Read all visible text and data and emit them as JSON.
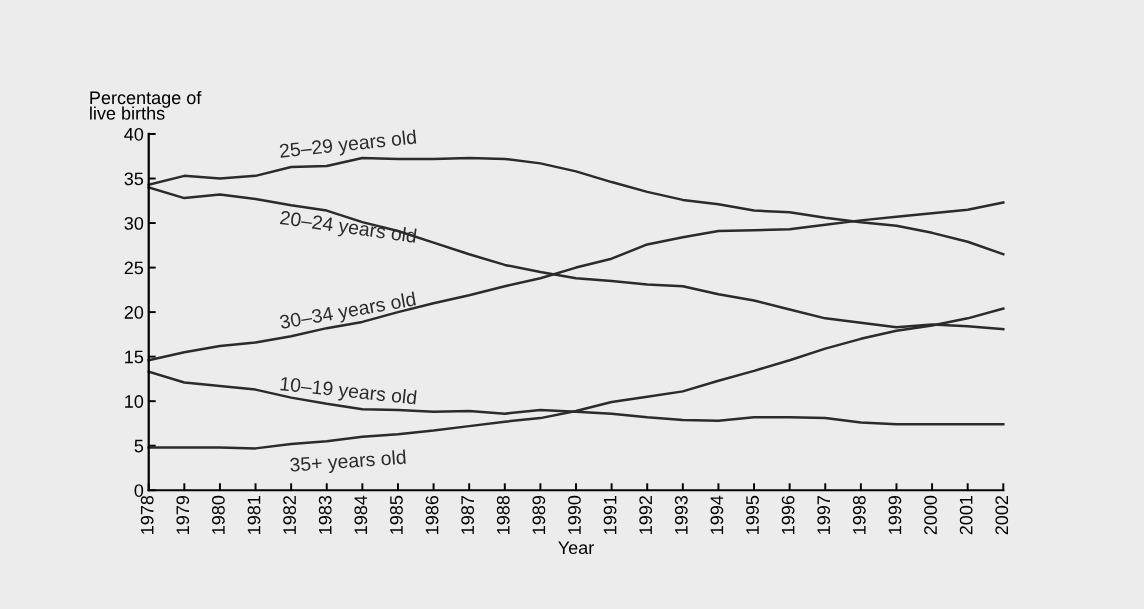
{
  "chart_data": {
    "type": "line",
    "ylabel": "Percentage of\nlive births",
    "xlabel": "Year",
    "x": [
      1978,
      1979,
      1980,
      1981,
      1982,
      1983,
      1984,
      1985,
      1986,
      1987,
      1988,
      1989,
      1990,
      1991,
      1992,
      1993,
      1994,
      1995,
      1996,
      1997,
      1998,
      1999,
      2000,
      2001,
      2002
    ],
    "xlim": [
      1978,
      2002
    ],
    "xticks": [
      1978,
      1979,
      1980,
      1981,
      1982,
      1983,
      1984,
      1985,
      1986,
      1987,
      1988,
      1989,
      1990,
      1991,
      1992,
      1993,
      1994,
      1995,
      1996,
      1997,
      1998,
      1999,
      2000,
      2001,
      2002
    ],
    "ylim": [
      0,
      40
    ],
    "yticks": [
      0,
      5,
      10,
      15,
      20,
      25,
      30,
      35,
      40
    ],
    "grid": false,
    "legend": false,
    "marker": "none",
    "line_style": "solid",
    "series": [
      {
        "name": "25–29 years old",
        "color": "#2b2b2b",
        "values": [
          34.3,
          35.3,
          35.0,
          35.3,
          36.3,
          36.4,
          37.3,
          37.2,
          37.2,
          37.3,
          37.2,
          36.7,
          35.8,
          34.6,
          33.5,
          32.6,
          32.1,
          31.4,
          31.2,
          30.6,
          30.1,
          29.7,
          28.9,
          27.9,
          26.5
        ]
      },
      {
        "name": "20–24 years old",
        "color": "#2b2b2b",
        "values": [
          34.0,
          32.8,
          33.2,
          32.7,
          32.0,
          31.4,
          30.1,
          29.1,
          27.8,
          26.5,
          25.3,
          24.5,
          23.8,
          23.5,
          23.1,
          22.9,
          22.0,
          21.3,
          20.3,
          19.3,
          18.8,
          18.3,
          18.6,
          18.4,
          18.1
        ]
      },
      {
        "name": "30–34 years old",
        "color": "#2b2b2b",
        "values": [
          14.6,
          15.5,
          16.2,
          16.6,
          17.3,
          18.2,
          18.9,
          20.0,
          21.0,
          21.9,
          22.9,
          23.8,
          25.0,
          26.0,
          27.6,
          28.4,
          29.1,
          29.2,
          29.3,
          29.8,
          30.3,
          30.7,
          31.1,
          31.5,
          32.3
        ]
      },
      {
        "name": "10–19 years old",
        "color": "#2b2b2b",
        "values": [
          13.3,
          12.1,
          11.7,
          11.3,
          10.4,
          9.7,
          9.1,
          9.0,
          8.8,
          8.9,
          8.6,
          9.0,
          8.8,
          8.6,
          8.2,
          7.9,
          7.8,
          8.2,
          8.2,
          8.1,
          7.6,
          7.4,
          7.4,
          7.4,
          7.4
        ]
      },
      {
        "name": "35+ years old",
        "color": "#2b2b2b",
        "values": [
          4.8,
          4.8,
          4.8,
          4.7,
          5.2,
          5.5,
          6.0,
          6.3,
          6.7,
          7.2,
          7.7,
          8.1,
          8.9,
          9.9,
          10.5,
          11.1,
          12.3,
          13.4,
          14.6,
          15.9,
          17.0,
          17.9,
          18.5,
          19.3,
          20.4
        ]
      }
    ]
  }
}
